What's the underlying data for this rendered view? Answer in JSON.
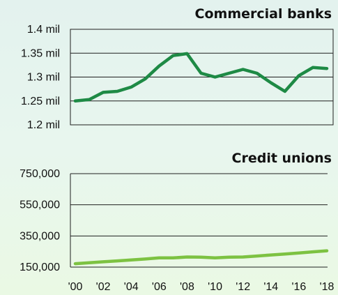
{
  "chart_data": [
    {
      "type": "line",
      "title": "Commercial banks",
      "x": [
        "2000",
        "2001",
        "2002",
        "2003",
        "2004",
        "2005",
        "2006",
        "2007",
        "2008",
        "2009",
        "2010",
        "2011",
        "2012",
        "2013",
        "2014",
        "2015",
        "2016",
        "2017",
        "2018"
      ],
      "series": [
        {
          "values": [
            1.25,
            1.253,
            1.268,
            1.27,
            1.279,
            1.296,
            1.323,
            1.345,
            1.349,
            1.308,
            1.3,
            1.308,
            1.316,
            1.308,
            1.288,
            1.27,
            1.303,
            1.32,
            1.318
          ]
        }
      ],
      "ylim": [
        1.2,
        1.4
      ],
      "yticks": [
        "1.4 mil",
        "1.35 mil",
        "1.3 mil",
        "1.25 mil",
        "1.2 mil"
      ],
      "ytick_values": [
        1.4,
        1.35,
        1.3,
        1.25,
        1.2
      ],
      "line_color": "#1e8a45",
      "grid": true
    },
    {
      "type": "line",
      "title": "Credit unions",
      "x": [
        "2000",
        "2001",
        "2002",
        "2003",
        "2004",
        "2005",
        "2006",
        "2007",
        "2008",
        "2009",
        "2010",
        "2011",
        "2012",
        "2013",
        "2014",
        "2015",
        "2016",
        "2017",
        "2018"
      ],
      "series": [
        {
          "values": [
            172000,
            178000,
            184000,
            190000,
            196000,
            202000,
            209000,
            209000,
            215000,
            214000,
            209000,
            214000,
            215000,
            221000,
            228000,
            234000,
            241000,
            248000,
            255000
          ]
        }
      ],
      "ylim": [
        150000,
        750000
      ],
      "yticks": [
        "750,000",
        "550,000",
        "350,000",
        "150,000"
      ],
      "ytick_values": [
        750000,
        550000,
        350000,
        150000
      ],
      "xticks": [
        "'00",
        "'02",
        "'04",
        "'06",
        "'08",
        "'10",
        "'12",
        "'14",
        "'16",
        "'18"
      ],
      "line_color": "#7dc242",
      "grid": true
    }
  ]
}
